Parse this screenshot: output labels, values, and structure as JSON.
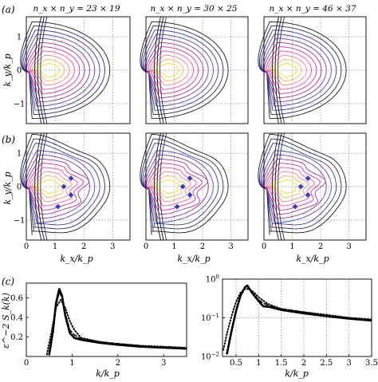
{
  "panels": {
    "a": "(a)",
    "b": "(b)",
    "c": "(c)"
  },
  "column_titles": [
    "n_x × n_y = 23 × 19",
    "n_x × n_y = 30 × 25",
    "n_x × n_y = 46 × 37"
  ],
  "contour_axes": {
    "ylabel": "k_y/k_p",
    "xlabel": "k_x/k_p",
    "yticks": [
      "1",
      "0",
      "−1"
    ],
    "xticks": [
      "0",
      "1",
      "2",
      "3"
    ]
  },
  "chart_data": [
    {
      "type": "line",
      "panel": "(c) left",
      "ylabel": "ε^−2 S_k(k)",
      "xlabel": "k/k_p",
      "xlim": [
        0,
        3.5
      ],
      "ylim": [
        0,
        0.75
      ],
      "xticks": [
        "0",
        "1",
        "2",
        "3"
      ],
      "yticks": [
        "0.2",
        "0.4",
        "0.6"
      ],
      "grid": false,
      "series": [
        {
          "style": "solid",
          "x": [
            0.5,
            0.58,
            0.65,
            0.72,
            0.78,
            0.85,
            0.95,
            1.05,
            1.2,
            1.6,
            2.0,
            2.5,
            3.0,
            3.5
          ],
          "values": [
            0.02,
            0.25,
            0.55,
            0.69,
            0.62,
            0.42,
            0.24,
            0.19,
            0.17,
            0.14,
            0.12,
            0.1,
            0.09,
            0.08
          ]
        },
        {
          "style": "dashed",
          "x": [
            0.5,
            0.58,
            0.65,
            0.72,
            0.78,
            0.85,
            0.95,
            1.05,
            1.2,
            1.6,
            2.0,
            2.5,
            3.0,
            3.5
          ],
          "values": [
            0.02,
            0.24,
            0.52,
            0.66,
            0.6,
            0.44,
            0.27,
            0.22,
            0.18,
            0.15,
            0.13,
            0.11,
            0.095,
            0.085
          ]
        },
        {
          "style": "dotted",
          "x": [
            0.45,
            0.55,
            0.65,
            0.75,
            0.85,
            0.95,
            1.05,
            1.2,
            1.6,
            2.0,
            2.5,
            3.0,
            3.5
          ],
          "values": [
            0.02,
            0.25,
            0.5,
            0.58,
            0.5,
            0.36,
            0.27,
            0.19,
            0.15,
            0.13,
            0.11,
            0.1,
            0.09
          ]
        }
      ]
    },
    {
      "type": "line",
      "panel": "(c) right",
      "xlabel": "k/k_p",
      "xscale": "linear",
      "yscale": "log",
      "xlim": [
        0.2,
        3.5
      ],
      "ylim": [
        0.01,
        1
      ],
      "xticks": [
        "0.5",
        "1",
        "1.5",
        "2",
        "2.5",
        "3",
        "3.5"
      ],
      "yticks": [
        "10^0",
        "10^−1",
        "10^−2"
      ],
      "grid": true,
      "series": [
        {
          "style": "solid",
          "x": [
            0.3,
            0.4,
            0.5,
            0.6,
            0.7,
            0.75,
            0.85,
            1.0,
            1.1,
            1.25,
            1.5,
            2.0,
            2.5,
            3.0,
            3.5
          ],
          "values": [
            0.012,
            0.045,
            0.15,
            0.38,
            0.62,
            0.68,
            0.45,
            0.27,
            0.2,
            0.19,
            0.16,
            0.13,
            0.11,
            0.095,
            0.085
          ]
        },
        {
          "style": "dashed",
          "x": [
            0.3,
            0.4,
            0.5,
            0.6,
            0.7,
            0.75,
            0.85,
            1.0,
            1.1,
            1.25,
            1.5,
            2.0,
            2.5,
            3.0,
            3.5
          ],
          "values": [
            0.012,
            0.044,
            0.14,
            0.36,
            0.6,
            0.66,
            0.47,
            0.29,
            0.24,
            0.2,
            0.17,
            0.14,
            0.115,
            0.1,
            0.09
          ]
        },
        {
          "style": "dotted",
          "x": [
            0.22,
            0.3,
            0.4,
            0.5,
            0.6,
            0.7,
            0.8,
            0.9,
            1.0,
            1.2,
            1.5,
            2.0,
            2.5,
            3.0,
            3.5
          ],
          "values": [
            0.015,
            0.04,
            0.11,
            0.26,
            0.45,
            0.56,
            0.55,
            0.45,
            0.34,
            0.23,
            0.17,
            0.14,
            0.12,
            0.1,
            0.09
          ]
        }
      ]
    }
  ]
}
